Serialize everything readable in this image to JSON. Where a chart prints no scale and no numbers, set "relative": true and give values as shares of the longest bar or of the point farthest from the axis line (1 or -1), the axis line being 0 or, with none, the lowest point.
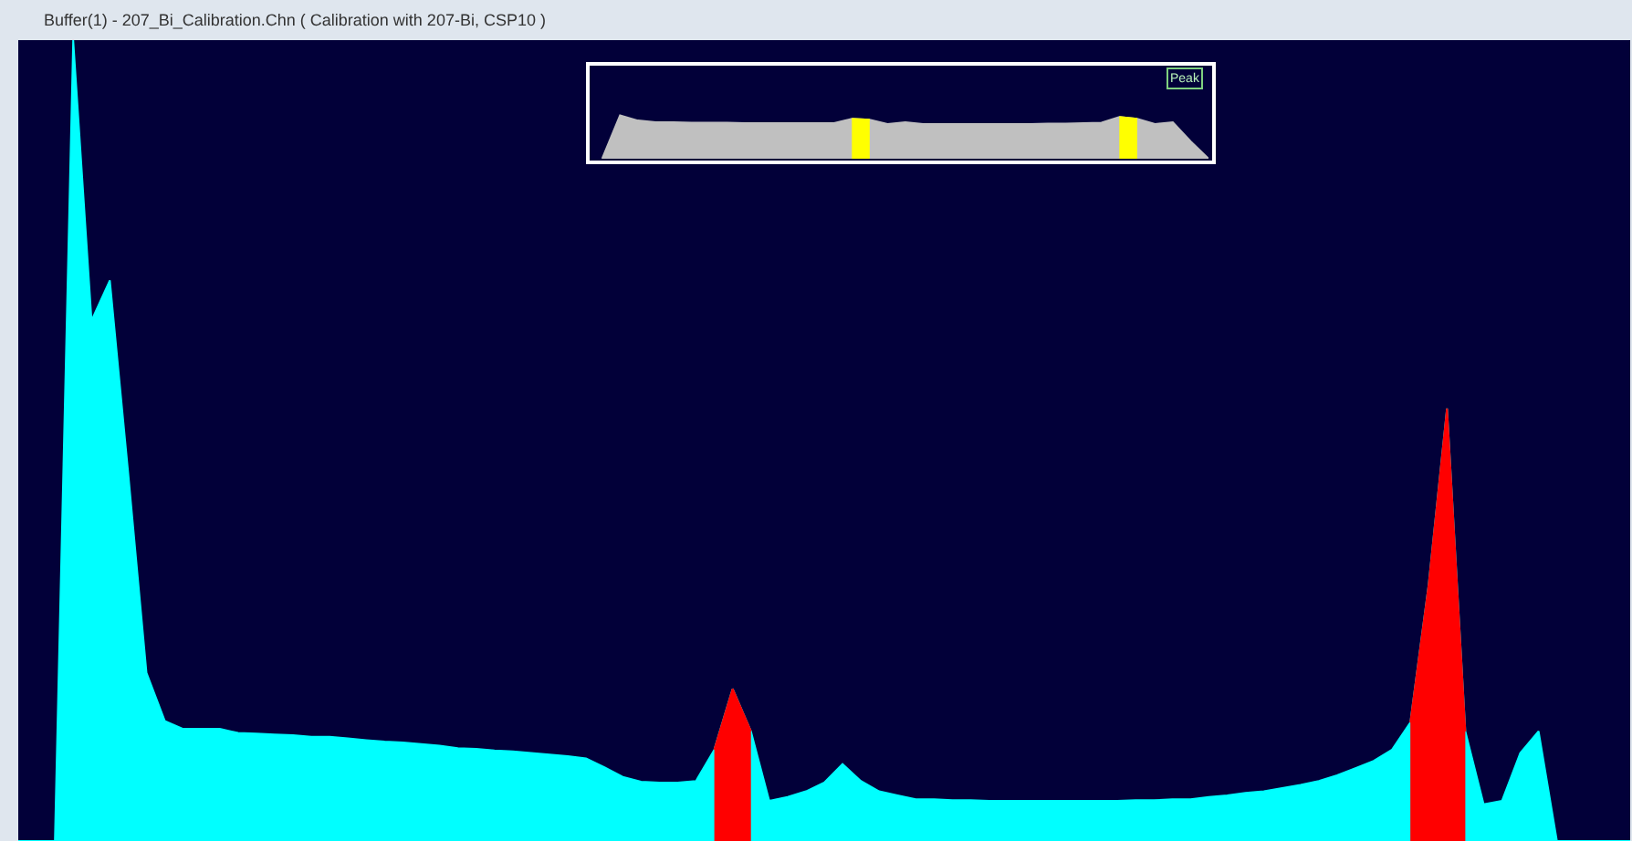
{
  "chart_data": [
    {
      "type": "area",
      "title": "Buffer(1) - 207_Bi_Calibration.Chn ( Calibration with 207-Bi, CSP10 )",
      "relative": true,
      "categories": [
        null,
        null,
        null,
        null,
        null,
        null,
        null,
        null,
        null,
        null,
        null,
        null,
        null,
        null,
        null,
        null,
        null,
        null,
        null,
        null,
        null,
        null,
        null,
        null,
        null,
        null,
        null,
        null,
        null,
        null,
        null,
        null,
        null,
        null,
        null,
        null,
        null,
        null,
        null,
        null,
        null,
        null,
        null,
        null,
        null,
        null,
        null,
        null,
        null,
        null,
        null,
        null,
        null,
        null,
        null,
        null,
        null,
        null,
        null,
        null,
        null,
        null,
        null,
        null,
        null,
        null,
        null,
        null,
        null,
        null,
        null,
        null,
        null,
        null,
        null,
        null,
        null,
        null,
        null,
        null,
        null,
        null,
        null,
        null,
        null,
        null,
        null,
        null,
        null
      ],
      "series": [
        {
          "color": "#00ffff",
          "values": [
            0,
            0,
            0,
            1.0,
            0.65,
            0.7,
            0.46,
            0.21,
            0.15,
            0.14,
            0.14,
            0.14,
            0.135,
            0.134,
            0.133,
            0.132,
            0.13,
            0.13,
            0.128,
            0.126,
            0.124,
            0.123,
            0.121,
            0.119,
            0.116,
            0.115,
            0.113,
            0.112,
            0.11,
            0.108,
            0.106,
            0.103,
            0.092,
            0.08,
            0.074,
            0.073,
            0.073,
            0.075,
            0.114,
            0.19,
            0.137,
            0.05,
            0.055,
            0.062,
            0.073,
            0.096,
            0.075,
            0.062,
            0.057,
            0.052,
            0.052,
            0.051,
            0.051,
            0.05,
            0.05,
            0.05,
            0.05,
            0.05,
            0.05,
            0.05,
            0.05,
            0.051,
            0.051,
            0.052,
            0.052,
            0.055,
            0.057,
            0.06,
            0.062,
            0.066,
            0.07,
            0.075,
            0.082,
            0.091,
            0.1,
            0.114,
            0.148,
            0.32,
            0.54,
            0.137,
            0.046,
            0.05,
            0.11,
            0.137,
            0,
            0,
            0,
            0,
            0
          ]
        },
        {
          "color": "#ff0000",
          "values": [
            null,
            null,
            null,
            null,
            null,
            null,
            null,
            null,
            null,
            null,
            null,
            null,
            null,
            null,
            null,
            null,
            null,
            null,
            null,
            null,
            null,
            null,
            null,
            null,
            null,
            null,
            null,
            null,
            null,
            null,
            null,
            null,
            null,
            null,
            null,
            null,
            null,
            null,
            0.114,
            0.19,
            0.137,
            null,
            null,
            null,
            null,
            null,
            null,
            null,
            null,
            null,
            null,
            null,
            null,
            null,
            null,
            null,
            null,
            null,
            null,
            null,
            null,
            null,
            null,
            null,
            null,
            null,
            null,
            null,
            null,
            null,
            null,
            null,
            null,
            null,
            null,
            null,
            0.148,
            0.32,
            0.54,
            0.137,
            null,
            null,
            null,
            null,
            null,
            null,
            null,
            null,
            null
          ]
        }
      ]
    },
    {
      "type": "area",
      "relative": true,
      "annotations": [
        "Peak"
      ],
      "categories": [
        null,
        null,
        null,
        null,
        null,
        null,
        null,
        null,
        null,
        null,
        null,
        null,
        null,
        null,
        null,
        null,
        null,
        null,
        null,
        null,
        null,
        null,
        null,
        null,
        null,
        null,
        null,
        null,
        null,
        null,
        null,
        null,
        null,
        null,
        null
      ],
      "series": [
        {
          "color": "#c0c0c0",
          "values": [
            0,
            1.0,
            0.88,
            0.84,
            0.84,
            0.83,
            0.83,
            0.83,
            0.82,
            0.82,
            0.82,
            0.82,
            0.82,
            0.82,
            0.92,
            0.9,
            0.8,
            0.84,
            0.8,
            0.8,
            0.8,
            0.8,
            0.8,
            0.8,
            0.8,
            0.81,
            0.81,
            0.82,
            0.83,
            0.96,
            0.92,
            0.8,
            0.84,
            0.4,
            0
          ]
        },
        {
          "color": "#ffff00",
          "values": [
            null,
            null,
            null,
            null,
            null,
            null,
            null,
            null,
            null,
            null,
            null,
            null,
            null,
            null,
            0.92,
            0.9,
            null,
            null,
            null,
            null,
            null,
            null,
            null,
            null,
            null,
            null,
            null,
            null,
            null,
            0.96,
            0.92,
            null,
            null,
            null,
            null
          ]
        }
      ]
    }
  ]
}
